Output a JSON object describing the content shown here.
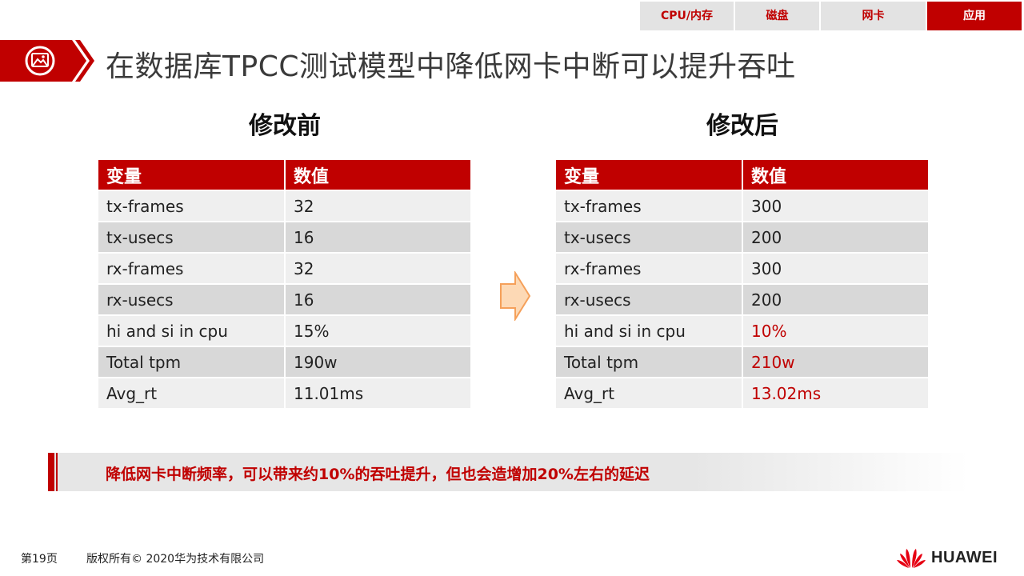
{
  "nav": {
    "tabs": [
      {
        "label": "CPU/内存",
        "active": false
      },
      {
        "label": "磁盘",
        "active": false
      },
      {
        "label": "网卡",
        "active": false
      },
      {
        "label": "应用",
        "active": true
      }
    ]
  },
  "header": {
    "title": "在数据库TPCC测试模型中降低网卡中断可以提升吞吐"
  },
  "before": {
    "title": "修改前",
    "headers": [
      "变量",
      "数值"
    ],
    "rows": [
      [
        "tx-frames",
        "32"
      ],
      [
        "tx-usecs",
        "16"
      ],
      [
        "rx-frames",
        "32"
      ],
      [
        "rx-usecs",
        "16"
      ],
      [
        "hi and si in cpu",
        "15%"
      ],
      [
        "Total tpm",
        "190w"
      ],
      [
        "Avg_rt",
        "11.01ms"
      ]
    ]
  },
  "after": {
    "title": "修改后",
    "headers": [
      "变量",
      "数值"
    ],
    "rows": [
      [
        "tx-frames",
        "300"
      ],
      [
        "tx-usecs",
        "200"
      ],
      [
        "rx-frames",
        "300"
      ],
      [
        "rx-usecs",
        "200"
      ],
      [
        "hi and si in cpu",
        "10%"
      ],
      [
        "Total tpm",
        "210w"
      ],
      [
        "Avg_rt",
        "13.02ms"
      ]
    ]
  },
  "summary": {
    "text": "降低网卡中断频率，可以带来约10%的吞吐提升，但也会造增加20%左右的延迟"
  },
  "footer": {
    "page": "第19页",
    "copyright": "版权所有© 2020华为技术有限公司",
    "brand": "HUAWEI"
  },
  "colors": {
    "accent": "#c00000",
    "arrow_fill": "#fdd9b5",
    "arrow_stroke": "#f5a05a"
  },
  "icons": {
    "title": "image-icon",
    "transition": "right-arrow-icon",
    "logo": "huawei-logo-icon"
  }
}
